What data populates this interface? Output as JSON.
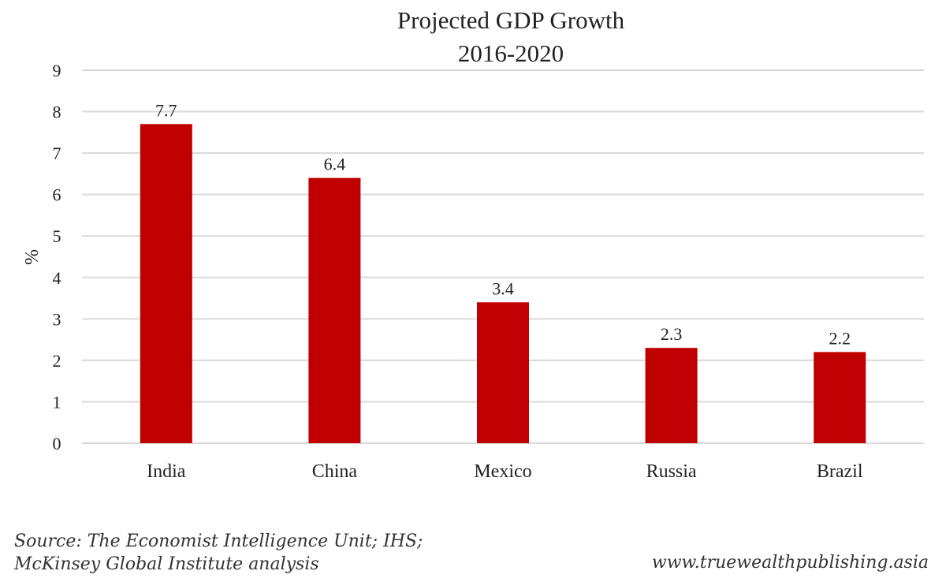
{
  "chart_data": {
    "type": "bar",
    "title": "Projected GDP Growth",
    "subtitle": "2016-2020",
    "categories": [
      "India",
      "China",
      "Mexico",
      "Russia",
      "Brazil"
    ],
    "values": [
      7.7,
      6.4,
      3.4,
      2.3,
      2.2
    ],
    "data_labels": [
      "7.7",
      "6.4",
      "3.4",
      "2.3",
      "2.2"
    ],
    "xlabel": "",
    "ylabel": "%",
    "ylim": [
      0,
      9
    ],
    "yticks": [
      0,
      1,
      2,
      3,
      4,
      5,
      6,
      7,
      8,
      9
    ],
    "ytick_labels": [
      "0",
      "1",
      "2",
      "3",
      "4",
      "5",
      "6",
      "7",
      "8",
      "9"
    ],
    "grid": true,
    "legend": "none",
    "bar_color": "#C00000",
    "gridline_color": "#D9D9D9"
  },
  "footer": {
    "source_line1": "Source: The Economist Intelligence Unit; IHS;",
    "source_line2": "McKinsey Global Institute analysis",
    "website": "www.truewealthpublishing.asia"
  }
}
